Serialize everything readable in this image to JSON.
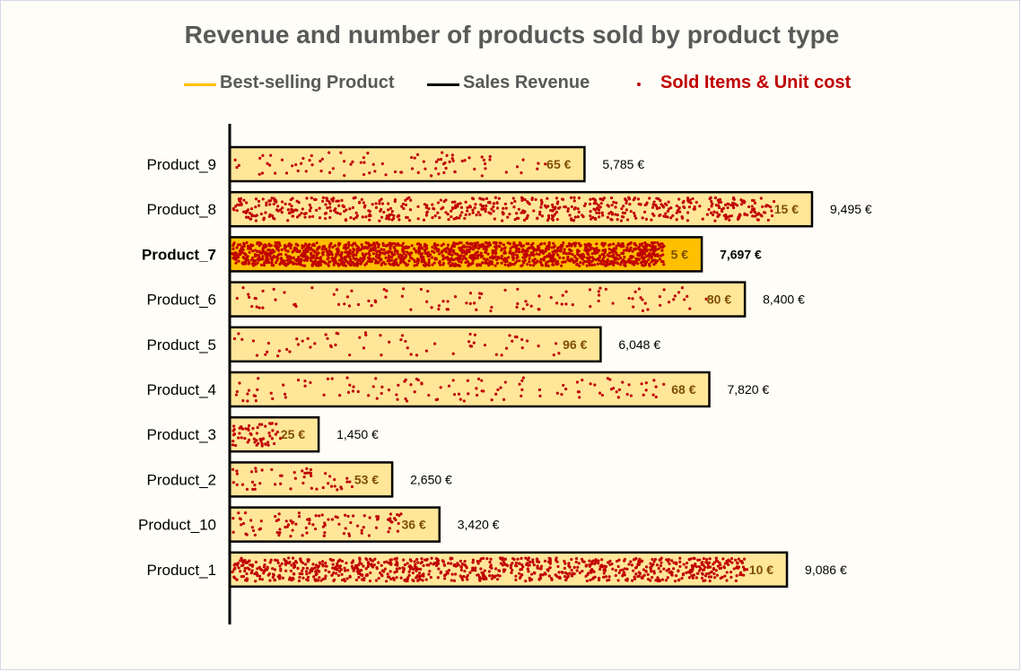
{
  "chart_data": {
    "type": "bar",
    "title": "Revenue and number of products sold by product type",
    "legend": [
      {
        "label": "Best-selling Product",
        "color": "#ffc000"
      },
      {
        "label": "Sales Revenue",
        "color": "#000000"
      },
      {
        "label": "Sold Items & Unit cost",
        "color": "#c00000"
      }
    ],
    "categories": [
      "Product_9",
      "Product_8",
      "Product_7",
      "Product_6",
      "Product_5",
      "Product_4",
      "Product_3",
      "Product_2",
      "Product_10",
      "Product_1"
    ],
    "series": [
      {
        "name": "Sales Revenue",
        "values": [
          5785,
          9495,
          7697,
          8400,
          6048,
          7820,
          1450,
          2650,
          3420,
          9086
        ]
      }
    ],
    "value_labels": [
      "5,785 €",
      "9,495 €",
      "7,697 €",
      "8,400 €",
      "6,048 €",
      "7,820 €",
      "1,450 €",
      "2,650 €",
      "3,420 €",
      "9,086 €"
    ],
    "unit_cost_labels": [
      "65 €",
      "15 €",
      "5 €",
      "80 €",
      "96 €",
      "68 €",
      "25 €",
      "53 €",
      "36 €",
      "10 €"
    ],
    "sold_items": [
      89,
      633,
      1539,
      105,
      63,
      115,
      58,
      50,
      95,
      909
    ],
    "best_selling": "Product_7",
    "xlim": [
      0,
      10000
    ],
    "grid": false,
    "legend_position": "top",
    "colors": {
      "bar_fill": "#ffe699",
      "best_fill": "#ffc000",
      "bar_stroke": "#000000",
      "dot": "#c00000",
      "cost_text": "#7f4f00",
      "title": "#595959"
    }
  }
}
